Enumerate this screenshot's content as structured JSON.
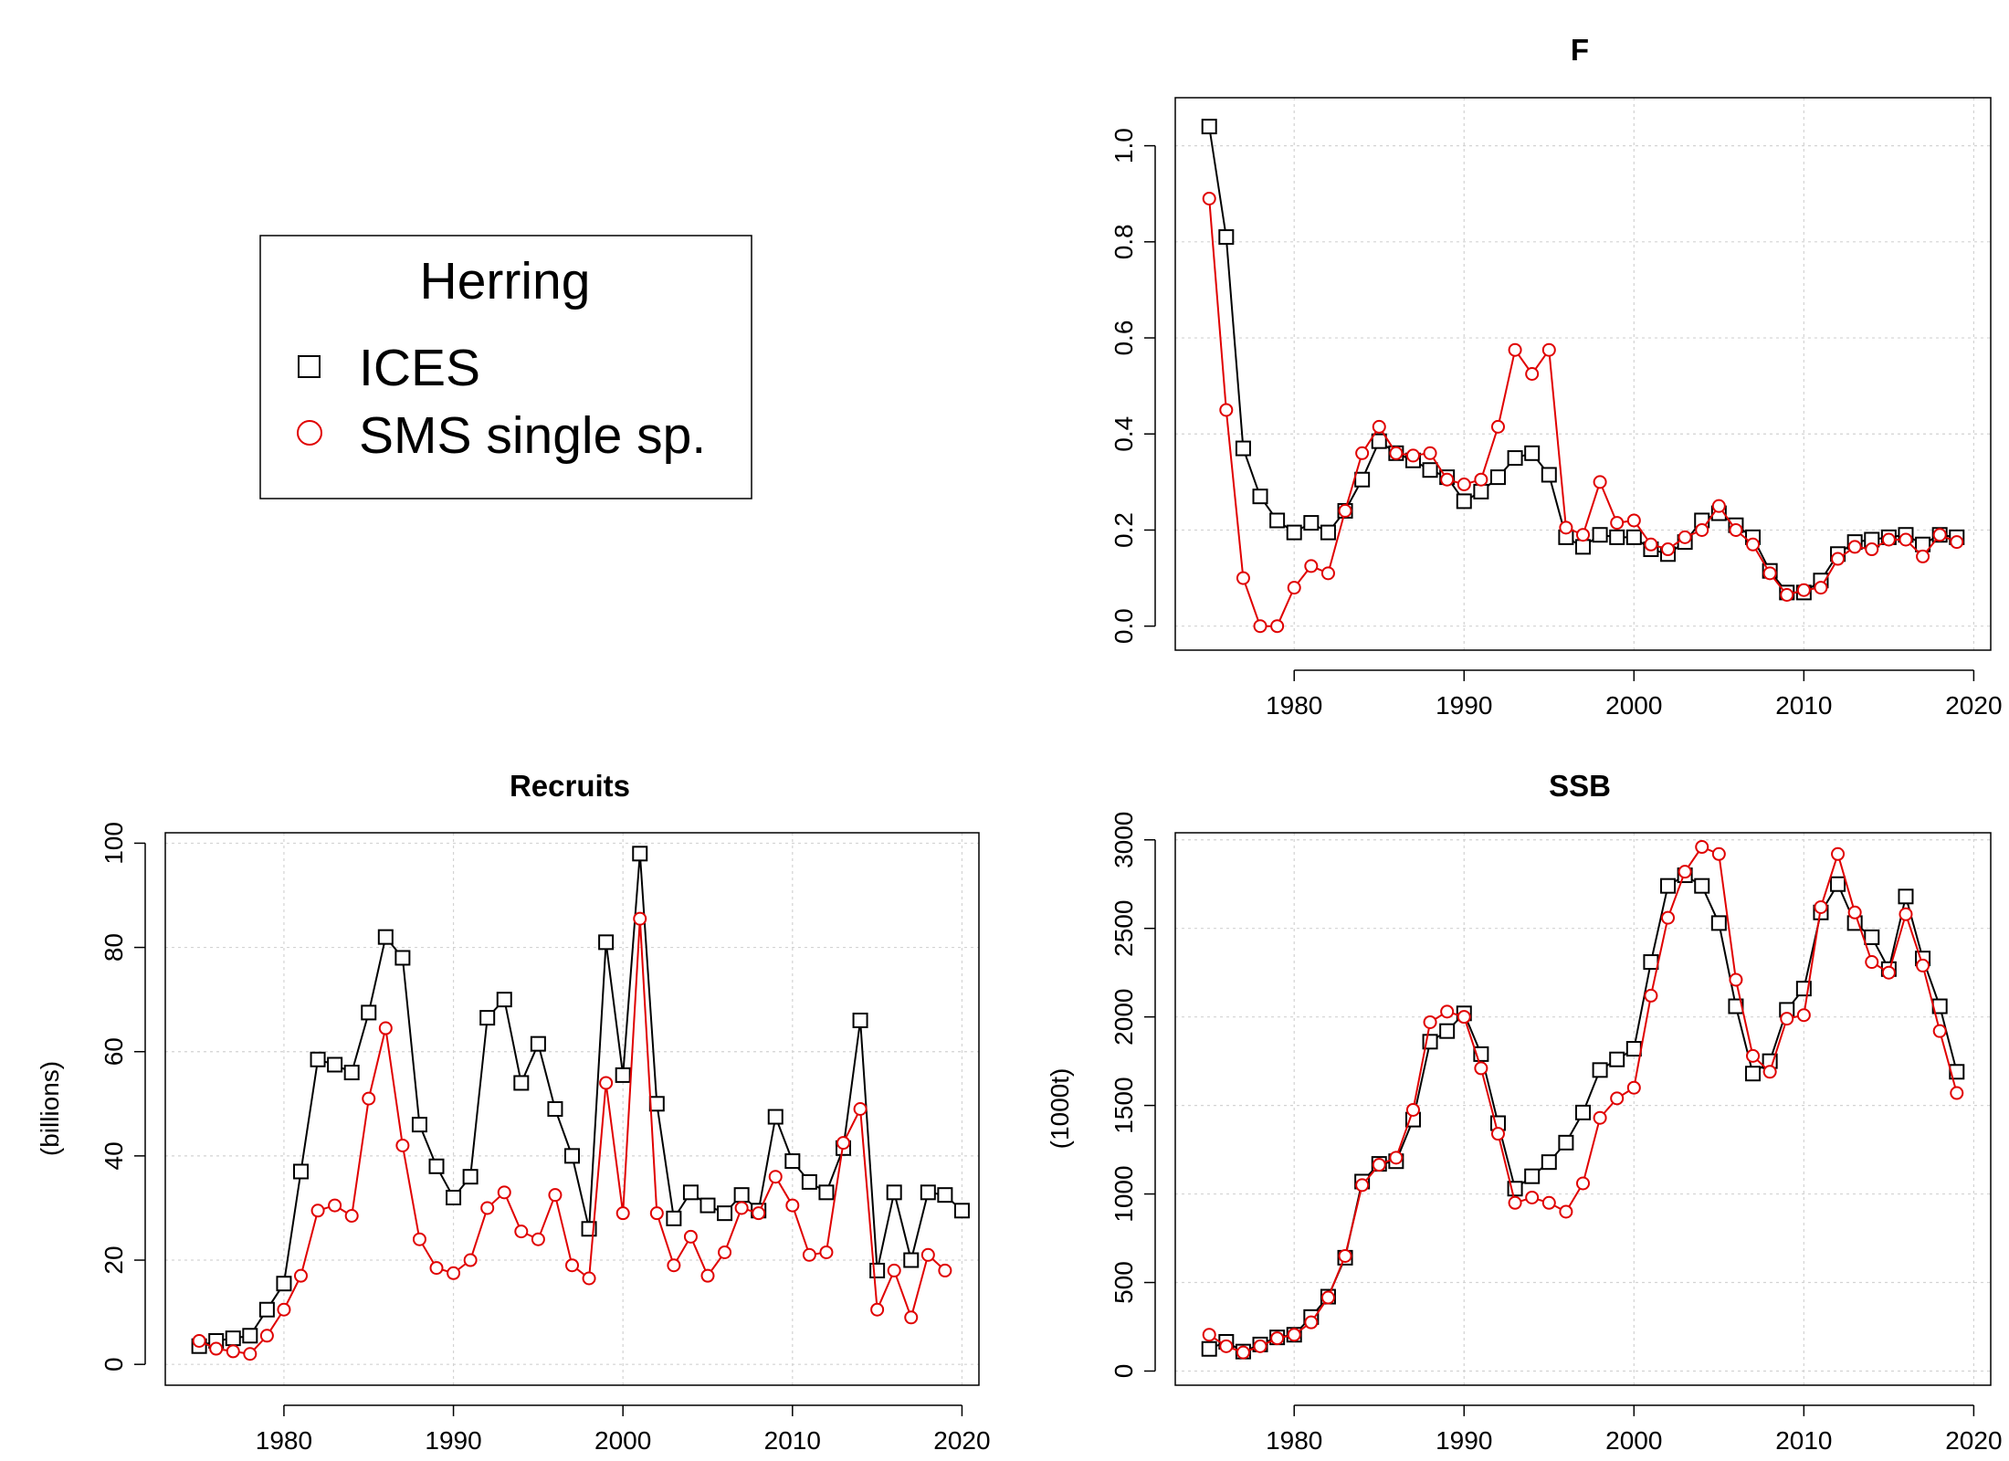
{
  "legend": {
    "title": "Herring",
    "items": [
      {
        "label": "ICES",
        "symbol": "square",
        "color": "#000000"
      },
      {
        "label": "SMS single sp.",
        "symbol": "circle",
        "color": "#e00000"
      }
    ]
  },
  "chart_data": [
    {
      "type": "line",
      "title": "F",
      "xlabel": "",
      "ylabel": "",
      "xlim": [
        1973,
        2021
      ],
      "ylim": [
        -0.05,
        1.1
      ],
      "xticks": [
        1980,
        1990,
        2000,
        2010,
        2020
      ],
      "yticks": [
        0.0,
        0.2,
        0.4,
        0.6,
        0.8,
        1.0
      ],
      "ytick_labels": [
        "0.0",
        "0.2",
        "0.4",
        "0.6",
        "0.8",
        "1.0"
      ],
      "grid": true,
      "series": [
        {
          "name": "ICES",
          "x": [
            1975,
            1976,
            1977,
            1978,
            1979,
            1980,
            1981,
            1982,
            1983,
            1984,
            1985,
            1986,
            1987,
            1988,
            1989,
            1990,
            1991,
            1992,
            1993,
            1994,
            1995,
            1996,
            1997,
            1998,
            1999,
            2000,
            2001,
            2002,
            2003,
            2004,
            2005,
            2006,
            2007,
            2008,
            2009,
            2010,
            2011,
            2012,
            2013,
            2014,
            2015,
            2016,
            2017,
            2018,
            2019
          ],
          "y": [
            1.04,
            0.81,
            0.37,
            0.27,
            0.22,
            0.195,
            0.215,
            0.195,
            0.24,
            0.305,
            0.385,
            0.36,
            0.345,
            0.325,
            0.31,
            0.26,
            0.28,
            0.31,
            0.35,
            0.36,
            0.315,
            0.185,
            0.165,
            0.19,
            0.185,
            0.185,
            0.16,
            0.15,
            0.175,
            0.22,
            0.235,
            0.21,
            0.185,
            0.115,
            0.07,
            0.07,
            0.095,
            0.15,
            0.175,
            0.18,
            0.185,
            0.19,
            0.17,
            0.19,
            0.185
          ]
        },
        {
          "name": "SMS single sp.",
          "x": [
            1975,
            1976,
            1977,
            1978,
            1979,
            1980,
            1981,
            1982,
            1983,
            1984,
            1985,
            1986,
            1987,
            1988,
            1989,
            1990,
            1991,
            1992,
            1993,
            1994,
            1995,
            1996,
            1997,
            1998,
            1999,
            2000,
            2001,
            2002,
            2003,
            2004,
            2005,
            2006,
            2007,
            2008,
            2009,
            2010,
            2011,
            2012,
            2013,
            2014,
            2015,
            2016,
            2017,
            2018,
            2019
          ],
          "y": [
            0.89,
            0.45,
            0.1,
            0.0,
            0.0,
            0.08,
            0.125,
            0.11,
            0.24,
            0.36,
            0.415,
            0.36,
            0.355,
            0.36,
            0.305,
            0.295,
            0.305,
            0.415,
            0.575,
            0.525,
            0.575,
            0.205,
            0.19,
            0.3,
            0.215,
            0.22,
            0.17,
            0.16,
            0.185,
            0.2,
            0.25,
            0.2,
            0.17,
            0.11,
            0.065,
            0.075,
            0.08,
            0.14,
            0.165,
            0.16,
            0.18,
            0.18,
            0.145,
            0.19,
            0.175
          ]
        }
      ]
    },
    {
      "type": "line",
      "title": "Recruits",
      "xlabel": "",
      "ylabel": "(billions)",
      "xlim": [
        1973,
        2021
      ],
      "ylim": [
        -4,
        102
      ],
      "xticks": [
        1980,
        1990,
        2000,
        2010,
        2020
      ],
      "yticks": [
        0,
        20,
        40,
        60,
        80,
        100
      ],
      "ytick_labels": [
        "0",
        "20",
        "40",
        "60",
        "80",
        "100"
      ],
      "grid": true,
      "series": [
        {
          "name": "ICES",
          "x": [
            1975,
            1976,
            1977,
            1978,
            1979,
            1980,
            1981,
            1982,
            1983,
            1984,
            1985,
            1986,
            1987,
            1988,
            1989,
            1990,
            1991,
            1992,
            1993,
            1994,
            1995,
            1996,
            1997,
            1998,
            1999,
            2000,
            2001,
            2002,
            2003,
            2004,
            2005,
            2006,
            2007,
            2008,
            2009,
            2010,
            2011,
            2012,
            2013,
            2014,
            2015,
            2016,
            2017,
            2018,
            2019,
            2020
          ],
          "y": [
            3.5,
            4.5,
            5,
            5.5,
            10.5,
            15.5,
            37,
            58.5,
            57.5,
            56,
            67.5,
            82,
            78,
            46,
            38,
            32,
            36,
            66.5,
            70,
            54,
            61.5,
            49,
            40,
            26,
            81,
            55.5,
            98,
            50,
            28,
            33,
            30.5,
            29,
            32.5,
            29.5,
            47.5,
            39,
            35,
            33,
            41.5,
            66,
            18,
            33,
            20,
            33,
            32.5,
            29.5
          ]
        },
        {
          "name": "SMS single sp.",
          "x": [
            1975,
            1976,
            1977,
            1978,
            1979,
            1980,
            1981,
            1982,
            1983,
            1984,
            1985,
            1986,
            1987,
            1988,
            1989,
            1990,
            1991,
            1992,
            1993,
            1994,
            1995,
            1996,
            1997,
            1998,
            1999,
            2000,
            2001,
            2002,
            2003,
            2004,
            2005,
            2006,
            2007,
            2008,
            2009,
            2010,
            2011,
            2012,
            2013,
            2014,
            2015,
            2016,
            2017,
            2018,
            2019
          ],
          "y": [
            4.5,
            3,
            2.5,
            2,
            5.5,
            10.5,
            17,
            29.5,
            30.5,
            28.5,
            51,
            64.5,
            42,
            24,
            18.5,
            17.5,
            20,
            30,
            33,
            25.5,
            24,
            32.5,
            19,
            16.5,
            54,
            29,
            85.5,
            29,
            19,
            24.5,
            17,
            21.5,
            30,
            29,
            36,
            30.5,
            21,
            21.5,
            42.5,
            49,
            10.5,
            18,
            9,
            21,
            18
          ]
        }
      ]
    },
    {
      "type": "line",
      "title": "SSB",
      "xlabel": "",
      "ylabel": "(1000t)",
      "xlim": [
        1973,
        2021
      ],
      "ylim": [
        -80,
        3040
      ],
      "xticks": [
        1980,
        1990,
        2000,
        2010,
        2020
      ],
      "yticks": [
        0,
        500,
        1000,
        1500,
        2000,
        2500,
        3000
      ],
      "ytick_labels": [
        "0",
        "500",
        "1000",
        "1500",
        "2000",
        "2500",
        "3000"
      ],
      "grid": true,
      "series": [
        {
          "name": "ICES",
          "x": [
            1975,
            1976,
            1977,
            1978,
            1979,
            1980,
            1981,
            1982,
            1983,
            1984,
            1985,
            1986,
            1987,
            1988,
            1989,
            1990,
            1991,
            1992,
            1993,
            1994,
            1995,
            1996,
            1997,
            1998,
            1999,
            2000,
            2001,
            2002,
            2003,
            2004,
            2005,
            2006,
            2007,
            2008,
            2009,
            2010,
            2011,
            2012,
            2013,
            2014,
            2015,
            2016,
            2017,
            2018,
            2019
          ],
          "y": [
            125,
            165,
            110,
            150,
            190,
            205,
            305,
            420,
            640,
            1070,
            1170,
            1185,
            1420,
            1860,
            1920,
            2020,
            1790,
            1400,
            1030,
            1100,
            1180,
            1290,
            1460,
            1700,
            1760,
            1820,
            2310,
            2740,
            2800,
            2740,
            2530,
            2060,
            1680,
            1750,
            2040,
            2160,
            2590,
            2750,
            2530,
            2450,
            2270,
            2680,
            2330,
            2060,
            1690
          ]
        },
        {
          "name": "SMS single sp.",
          "x": [
            1975,
            1976,
            1977,
            1978,
            1979,
            1980,
            1981,
            1982,
            1983,
            1984,
            1985,
            1986,
            1987,
            1988,
            1989,
            1990,
            1991,
            1992,
            1993,
            1994,
            1995,
            1996,
            1997,
            1998,
            1999,
            2000,
            2001,
            2002,
            2003,
            2004,
            2005,
            2006,
            2007,
            2008,
            2009,
            2010,
            2011,
            2012,
            2013,
            2014,
            2015,
            2016,
            2017,
            2018,
            2019
          ],
          "y": [
            205,
            140,
            105,
            140,
            185,
            205,
            275,
            415,
            650,
            1050,
            1165,
            1205,
            1475,
            1970,
            2030,
            2000,
            1710,
            1340,
            950,
            980,
            950,
            900,
            1060,
            1430,
            1540,
            1600,
            2120,
            2560,
            2820,
            2960,
            2920,
            2210,
            1780,
            1690,
            1990,
            2010,
            2620,
            2920,
            2590,
            2310,
            2250,
            2580,
            2290,
            1920,
            1570
          ]
        }
      ]
    }
  ]
}
